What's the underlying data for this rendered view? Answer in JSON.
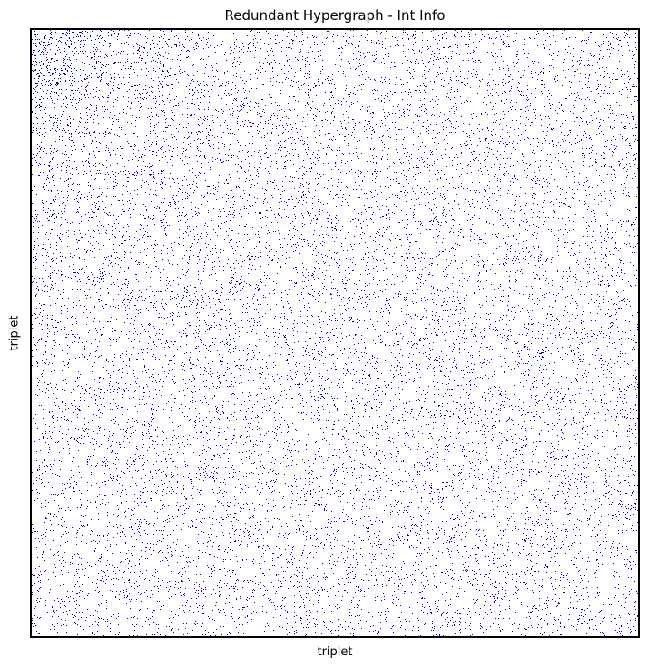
{
  "chart_data": {
    "type": "heatmap",
    "title": "Redundant Hypergraph - Int Info",
    "xlabel": "triplet",
    "ylabel": "triplet",
    "x_ticks": [],
    "y_ticks": [],
    "grid": false,
    "legend": "none",
    "marker_color": "#0000cc",
    "background_color": "#ffffff",
    "frame_color": "#000000",
    "matrix_size": 670,
    "density_profile": {
      "base_fraction": 0.036,
      "top_left_extra_fraction": 0.09,
      "top_left_decay": 0.12
    }
  }
}
